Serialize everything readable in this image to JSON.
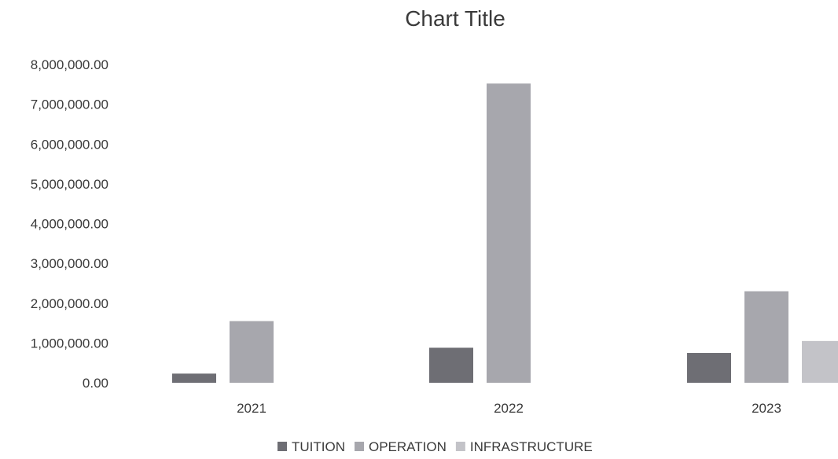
{
  "chart_data": {
    "type": "bar",
    "title": "Chart Title",
    "xlabel": "",
    "ylabel": "",
    "categories": [
      "2021",
      "2022",
      "2023"
    ],
    "series": [
      {
        "name": "TUITION",
        "values": [
          230000,
          880000,
          750000
        ],
        "color": "#6e6e74"
      },
      {
        "name": "OPERATION",
        "values": [
          1550000,
          7520000,
          2300000
        ],
        "color": "#a7a7ad"
      },
      {
        "name": "INFRASTRUCTURE",
        "values": [
          0,
          0,
          1050000
        ],
        "color": "#c3c3c8"
      }
    ],
    "yticks": [
      "0.00",
      "1,000,000.00",
      "2,000,000.00",
      "3,000,000.00",
      "4,000,000.00",
      "5,000,000.00",
      "6,000,000.00",
      "7,000,000.00",
      "8,000,000.00"
    ],
    "ylim": [
      0,
      8000000
    ],
    "grid": false,
    "legend": "bottom-center"
  }
}
